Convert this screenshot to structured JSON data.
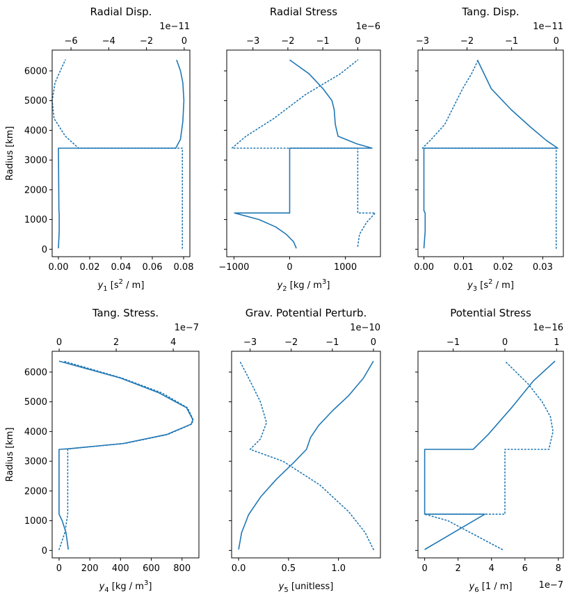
{
  "chart_data": [
    {
      "type": "line",
      "title": "Radial Disp.",
      "ylabel": "Radius [km]",
      "xlabel_parts": [
        "y",
        "1",
        " [s",
        "2",
        " / m]"
      ],
      "bottom": {
        "ticks": [
          0.0,
          0.02,
          0.04,
          0.06,
          0.08
        ],
        "tick_labels": [
          "0.00",
          "0.02",
          "0.04",
          "0.06",
          "0.08"
        ],
        "lim": [
          -0.004,
          0.084
        ],
        "offset": ""
      },
      "top": {
        "ticks": [
          -6,
          -4,
          -2,
          0
        ],
        "tick_labels": [
          "−6",
          "−4",
          "−2",
          "0"
        ],
        "lim": [
          -7.0,
          0.3
        ],
        "offset": "1e−11"
      },
      "ylim": [
        -250,
        6700
      ],
      "yticks": [
        0,
        1000,
        2000,
        3000,
        4000,
        5000,
        6000
      ],
      "series": [
        {
          "axis": "bottom",
          "style": "solid",
          "points": [
            [
              0.0,
              30
            ],
            [
              0.0005,
              600
            ],
            [
              0.0005,
              1220
            ],
            [
              0.0003,
              1300
            ],
            [
              0.0,
              3400
            ],
            [
              0.075,
              3400
            ],
            [
              0.078,
              3700
            ],
            [
              0.0795,
              4300
            ],
            [
              0.0802,
              5000
            ],
            [
              0.0795,
              5600
            ],
            [
              0.078,
              6000
            ],
            [
              0.0755,
              6371
            ]
          ]
        },
        {
          "axis": "top",
          "style": "dotted",
          "points": [
            [
              -0.1,
              30
            ],
            [
              -0.1,
              1220
            ],
            [
              -0.1,
              3400
            ],
            [
              -5.6,
              3400
            ],
            [
              -6.3,
              3800
            ],
            [
              -6.9,
              4400
            ],
            [
              -7.0,
              5000
            ],
            [
              -6.85,
              5600
            ],
            [
              -6.5,
              6100
            ],
            [
              -6.3,
              6371
            ]
          ]
        }
      ]
    },
    {
      "type": "line",
      "title": "Radial Stress",
      "ylabel": "",
      "xlabel_parts": [
        "y",
        "2",
        " [kg / m",
        "3",
        "]"
      ],
      "bottom": {
        "ticks": [
          -1000,
          0,
          1000
        ],
        "tick_labels": [
          "−1000",
          "0",
          "1000"
        ],
        "lim": [
          -1130,
          1630
        ],
        "offset": ""
      },
      "top": {
        "ticks": [
          -3,
          -2,
          -1,
          0
        ],
        "tick_labels": [
          "−3",
          "−2",
          "−1",
          "0"
        ],
        "lim": [
          -3.75,
          0.65
        ],
        "offset": "1e−6"
      },
      "ylim": [
        -250,
        6700
      ],
      "yticks": [
        0,
        1000,
        2000,
        3000,
        4000,
        5000,
        6000
      ],
      "series": [
        {
          "axis": "bottom",
          "style": "solid",
          "points": [
            [
              120,
              30
            ],
            [
              70,
              250
            ],
            [
              -60,
              500
            ],
            [
              -250,
              750
            ],
            [
              -550,
              1000
            ],
            [
              -990,
              1220
            ],
            [
              0,
              1220
            ],
            [
              0,
              3400
            ],
            [
              1480,
              3400
            ],
            [
              1200,
              3550
            ],
            [
              870,
              3800
            ],
            [
              820,
              4200
            ],
            [
              800,
              4700
            ],
            [
              760,
              5000
            ],
            [
              600,
              5400
            ],
            [
              350,
              5900
            ],
            [
              0,
              6371
            ]
          ]
        },
        {
          "axis": "top",
          "style": "dotted",
          "points": [
            [
              0.0,
              100
            ],
            [
              0.05,
              500
            ],
            [
              0.25,
              900
            ],
            [
              0.5,
              1220
            ],
            [
              0.0,
              1220
            ],
            [
              0.0,
              3400
            ],
            [
              -3.6,
              3400
            ],
            [
              -3.2,
              3800
            ],
            [
              -2.4,
              4400
            ],
            [
              -1.5,
              5200
            ],
            [
              -0.5,
              5900
            ],
            [
              0.0,
              6371
            ]
          ]
        }
      ]
    },
    {
      "type": "line",
      "title": "Tang. Disp.",
      "ylabel": "",
      "xlabel_parts": [
        "y",
        "3",
        " [s",
        "2",
        " / m]"
      ],
      "bottom": {
        "ticks": [
          0.0,
          0.01,
          0.02,
          0.03
        ],
        "tick_labels": [
          "0.00",
          "0.01",
          "0.02",
          "0.03"
        ],
        "lim": [
          -0.0015,
          0.0352
        ],
        "offset": ""
      },
      "top": {
        "ticks": [
          -3,
          -2,
          -1,
          0
        ],
        "tick_labels": [
          "−3",
          "−2",
          "−1",
          "0"
        ],
        "lim": [
          -3.1,
          0.16
        ],
        "offset": "1e−11"
      },
      "ylim": [
        -250,
        6700
      ],
      "yticks": [
        0,
        1000,
        2000,
        3000,
        4000,
        5000,
        6000
      ],
      "series": [
        {
          "axis": "bottom",
          "style": "solid",
          "points": [
            [
              0.0,
              30
            ],
            [
              0.0003,
              600
            ],
            [
              0.0003,
              1220
            ],
            [
              0.0,
              1300
            ],
            [
              0.0,
              3400
            ],
            [
              0.0338,
              3400
            ],
            [
              0.031,
              3650
            ],
            [
              0.027,
              4100
            ],
            [
              0.022,
              4700
            ],
            [
              0.017,
              5400
            ],
            [
              0.0135,
              6371
            ]
          ]
        },
        {
          "axis": "top",
          "style": "dotted",
          "points": [
            [
              0.0,
              30
            ],
            [
              0.0,
              3400
            ],
            [
              -3.0,
              3400
            ],
            [
              -2.8,
              3700
            ],
            [
              -2.5,
              4200
            ],
            [
              -2.3,
              4800
            ],
            [
              -2.1,
              5400
            ],
            [
              -1.9,
              5900
            ],
            [
              -1.75,
              6371
            ]
          ]
        }
      ]
    },
    {
      "type": "line",
      "title": "Tang. Stress.",
      "ylabel": "Radius [km]",
      "xlabel_parts": [
        "y",
        "4",
        " [kg / m",
        "3",
        "]"
      ],
      "bottom": {
        "ticks": [
          0,
          200,
          400,
          600,
          800
        ],
        "tick_labels": [
          "0",
          "200",
          "400",
          "600",
          "800"
        ],
        "lim": [
          -45,
          910
        ],
        "offset": ""
      },
      "top": {
        "ticks": [
          0,
          2,
          4
        ],
        "tick_labels": [
          "0",
          "2",
          "4"
        ],
        "lim": [
          -0.245,
          4.9
        ],
        "offset": "1e−7"
      },
      "ylim": [
        -250,
        6700
      ],
      "yticks": [
        0,
        1000,
        2000,
        3000,
        4000,
        5000,
        6000
      ],
      "series": [
        {
          "axis": "bottom",
          "style": "solid",
          "points": [
            [
              60,
              30
            ],
            [
              45,
              600
            ],
            [
              20,
              1000
            ],
            [
              0,
              1220
            ],
            [
              0,
              3400
            ],
            [
              60,
              3420
            ],
            [
              420,
              3600
            ],
            [
              700,
              3900
            ],
            [
              860,
              4250
            ],
            [
              870,
              4400
            ],
            [
              830,
              4800
            ],
            [
              650,
              5300
            ],
            [
              400,
              5800
            ],
            [
              0,
              6371
            ]
          ]
        },
        {
          "axis": "top",
          "style": "dotted",
          "points": [
            [
              0.0,
              30
            ],
            [
              0.2,
              600
            ],
            [
              0.3,
              1220
            ],
            [
              0.3,
              3400
            ],
            [
              0.35,
              3420
            ],
            [
              2.3,
              3600
            ],
            [
              3.8,
              3900
            ],
            [
              4.65,
              4250
            ],
            [
              4.7,
              4400
            ],
            [
              4.5,
              4800
            ],
            [
              3.6,
              5300
            ],
            [
              2.2,
              5800
            ],
            [
              0.15,
              6371
            ]
          ]
        }
      ]
    },
    {
      "type": "line",
      "title": "Grav. Potential Perturb.",
      "ylabel": "",
      "xlabel_parts": [
        "y",
        "5",
        " [unitless]",
        "",
        ""
      ],
      "bottom": {
        "ticks": [
          0.0,
          0.5,
          1.0
        ],
        "tick_labels": [
          "0.0",
          "0.5",
          "1.0"
        ],
        "lim": [
          -0.07,
          1.42
        ],
        "offset": ""
      },
      "top": {
        "ticks": [
          -3,
          -2,
          -1,
          0
        ],
        "tick_labels": [
          "−3",
          "−2",
          "−1",
          "0"
        ],
        "lim": [
          -3.45,
          0.17
        ],
        "offset": "1e−10"
      },
      "ylim": [
        -250,
        6700
      ],
      "yticks": [
        0,
        1000,
        2000,
        3000,
        4000,
        5000,
        6000
      ],
      "series": [
        {
          "axis": "bottom",
          "style": "solid",
          "points": [
            [
              0.0,
              30
            ],
            [
              0.03,
              600
            ],
            [
              0.1,
              1200
            ],
            [
              0.22,
              1800
            ],
            [
              0.38,
              2400
            ],
            [
              0.55,
              2950
            ],
            [
              0.68,
              3400
            ],
            [
              0.72,
              3800
            ],
            [
              0.8,
              4200
            ],
            [
              0.94,
              4700
            ],
            [
              1.1,
              5200
            ],
            [
              1.25,
              5800
            ],
            [
              1.35,
              6371
            ]
          ]
        },
        {
          "axis": "top",
          "style": "dotted",
          "points": [
            [
              0.0,
              30
            ],
            [
              -0.2,
              600
            ],
            [
              -0.6,
              1300
            ],
            [
              -1.3,
              2200
            ],
            [
              -2.2,
              3000
            ],
            [
              -3.0,
              3400
            ],
            [
              -2.75,
              3750
            ],
            [
              -2.6,
              4300
            ],
            [
              -2.75,
              5000
            ],
            [
              -3.0,
              5700
            ],
            [
              -3.25,
              6371
            ]
          ]
        }
      ]
    },
    {
      "type": "line",
      "title": "Potential Stress",
      "ylabel": "",
      "xlabel_parts": [
        "y",
        "6",
        " [1 / m]",
        "",
        ""
      ],
      "bottom": {
        "ticks": [
          0,
          2,
          4,
          6,
          8
        ],
        "tick_labels": [
          "0",
          "2",
          "4",
          "6",
          "8"
        ],
        "lim": [
          -0.4,
          8.3
        ],
        "offset": "1e−7"
      },
      "top": {
        "ticks": [
          -1,
          0,
          1
        ],
        "tick_labels": [
          "−1",
          "0",
          "1"
        ],
        "lim": [
          -1.68,
          1.13
        ],
        "offset": "1e−16"
      },
      "ylim": [
        -250,
        6700
      ],
      "yticks": [
        0,
        1000,
        2000,
        3000,
        4000,
        5000,
        6000
      ],
      "series": [
        {
          "axis": "bottom",
          "style": "solid",
          "points": [
            [
              0.0,
              30
            ],
            [
              3.6,
              1220
            ],
            [
              0.0,
              1220
            ],
            [
              0.0,
              3400
            ],
            [
              2.9,
              3400
            ],
            [
              3.8,
              3900
            ],
            [
              5.2,
              4800
            ],
            [
              6.5,
              5700
            ],
            [
              7.8,
              6371
            ]
          ]
        },
        {
          "axis": "top",
          "style": "dotted",
          "points": [
            [
              -0.05,
              30
            ],
            [
              -1.1,
              1000
            ],
            [
              -1.55,
              1220
            ],
            [
              0.0,
              1220
            ],
            [
              0.0,
              3400
            ],
            [
              0.85,
              3400
            ],
            [
              0.93,
              4000
            ],
            [
              0.88,
              4500
            ],
            [
              0.72,
              5000
            ],
            [
              0.45,
              5600
            ],
            [
              0.0,
              6371
            ]
          ]
        }
      ]
    }
  ],
  "colors": {
    "line": "#1f77b4"
  }
}
